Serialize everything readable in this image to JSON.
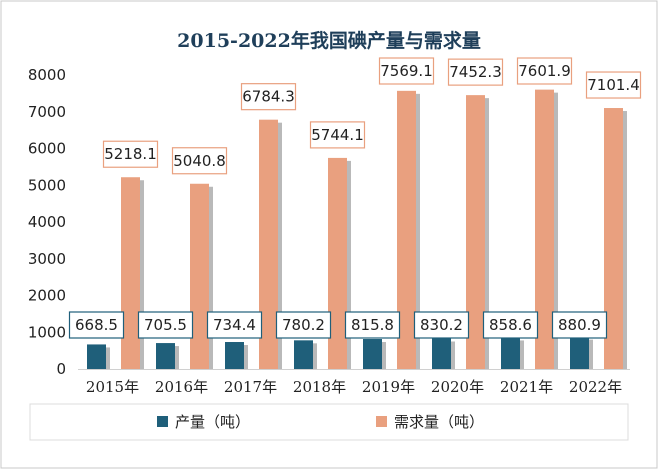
{
  "chart_data": {
    "type": "bar",
    "title": "2015-2022年我国碘产量与需求量",
    "categories": [
      "2015年",
      "2016年",
      "2017年",
      "2018年",
      "2019年",
      "2020年",
      "2021年",
      "2022年"
    ],
    "series": [
      {
        "name": "产量（吨）",
        "values": [
          668.5,
          705.5,
          734.4,
          780.2,
          815.8,
          830.2,
          858.6,
          880.9
        ],
        "color": "#1F5F7A"
      },
      {
        "name": "需求量（吨）",
        "values": [
          5218.1,
          5040.8,
          6784.3,
          5744.1,
          7569.1,
          7452.3,
          7601.9,
          7101.4
        ],
        "color": "#E9A07F"
      }
    ],
    "data_labels": {
      "series_0": [
        "668.5",
        "705.5",
        "734.4",
        "780.2",
        "815.8",
        "830.2",
        "858.6",
        "880.9"
      ],
      "series_1": [
        "5218.1",
        "5040.8",
        "6784.3",
        "5744.1",
        "7569.1",
        "7452.3",
        "7601.9",
        "7101.4"
      ]
    },
    "y_ticks": [
      "0",
      "1000",
      "2000",
      "3000",
      "4000",
      "5000",
      "6000",
      "7000",
      "8000"
    ],
    "ylim": [
      0,
      8000
    ],
    "grid": false,
    "legend_position": "bottom",
    "xlabel": "",
    "ylabel": ""
  },
  "colors": {
    "series_0": "#1F5F7A",
    "series_1": "#E9A07F",
    "label_border_0": "#1F5F7A",
    "label_border_1": "#E9A07F",
    "title": "#1F3F5A"
  }
}
